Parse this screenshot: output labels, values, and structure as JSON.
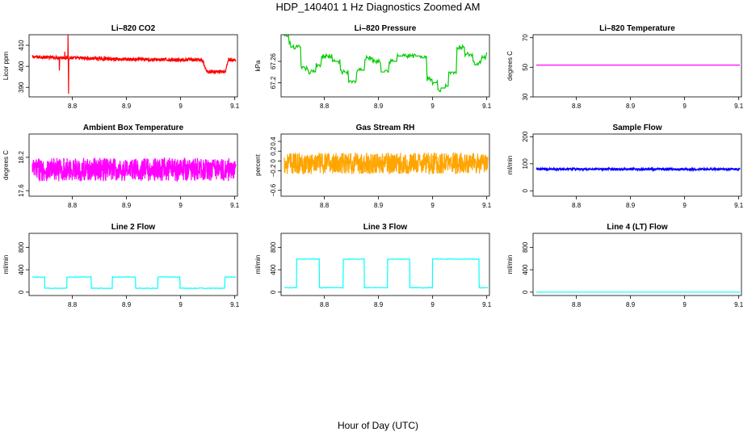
{
  "figure": {
    "title": "HDP_140401  1 Hz Diagnostics Zoomed AM",
    "xlabel": "Hour of Day (UTC)"
  },
  "chart_data": [
    {
      "type": "line",
      "title": "Li–820 CO2",
      "ylabel": "Licor ppm",
      "color": "#ff0000",
      "xlim": [
        8.72,
        9.105
      ],
      "ylim": [
        385.5,
        415
      ],
      "xticks": [
        8.8,
        8.9,
        9.0,
        9.1
      ],
      "yticks": [
        390,
        400,
        410
      ],
      "series": [
        {
          "name": "CO2",
          "style": "noisy",
          "amp": 0.8,
          "x": [
            8.726,
            8.9,
            9.04,
            9.048,
            9.051,
            9.083,
            9.088,
            9.091,
            9.102
          ],
          "y": [
            404.5,
            403.3,
            403.0,
            397.5,
            397.5,
            397.5,
            403.3,
            403.0,
            403.0
          ],
          "spikes": [
            {
              "x": 8.776,
              "y": 398
            },
            {
              "x": 8.792,
              "y": 414.8
            },
            {
              "x": 8.793,
              "y": 387
            },
            {
              "x": 8.786,
              "y": 407
            }
          ]
        }
      ]
    },
    {
      "type": "line",
      "title": "Li–820 Pressure",
      "ylabel": "kPa",
      "color": "#00cc00",
      "xlim": [
        8.72,
        9.105
      ],
      "ylim": [
        67.16,
        67.335
      ],
      "xticks": [
        8.8,
        8.9,
        9.0,
        9.1
      ],
      "yticks": [
        67.2,
        67.26
      ],
      "series": [
        {
          "name": "Pressure",
          "style": "step",
          "amp": 0.005,
          "x": [
            8.726,
            8.735,
            8.738,
            8.755,
            8.757,
            8.77,
            8.785,
            8.795,
            8.805,
            8.815,
            8.83,
            8.845,
            8.86,
            8.875,
            8.89,
            8.905,
            8.92,
            8.935,
            8.955,
            8.975,
            8.99,
            9.0,
            9.01,
            9.02,
            9.03,
            9.045,
            9.06,
            9.075,
            9.09,
            9.1
          ],
          "y": [
            67.33,
            67.315,
            67.3,
            67.3,
            67.24,
            67.23,
            67.25,
            67.275,
            67.275,
            67.26,
            67.23,
            67.205,
            67.235,
            67.27,
            67.26,
            67.235,
            67.26,
            67.275,
            67.275,
            67.27,
            67.21,
            67.2,
            67.18,
            67.19,
            67.23,
            67.3,
            67.28,
            67.255,
            67.27,
            67.285
          ]
        }
      ]
    },
    {
      "type": "line",
      "title": "Li–820 Temperature",
      "ylabel": "degrees C",
      "color": "#ff00ff",
      "xlim": [
        8.72,
        9.105
      ],
      "ylim": [
        30,
        72
      ],
      "xticks": [
        8.8,
        8.9,
        9.0,
        9.1
      ],
      "yticks": [
        30,
        50,
        70
      ],
      "series": [
        {
          "name": "Temperature",
          "style": "line",
          "amp": 0,
          "x": [
            8.726,
            9.102
          ],
          "y": [
            51.5,
            51.5
          ]
        }
      ]
    },
    {
      "type": "line",
      "title": "Ambient Box Temperature",
      "ylabel": "degrees C",
      "color": "#ff00ff",
      "xlim": [
        8.72,
        9.105
      ],
      "ylim": [
        17.5,
        18.62
      ],
      "xticks": [
        8.8,
        8.9,
        9.0,
        9.1
      ],
      "yticks": [
        17.6,
        18.2
      ],
      "series": [
        {
          "name": "Ambient",
          "style": "noisy",
          "amp": 0.21,
          "x": [
            8.726,
            9.102
          ],
          "y": [
            17.98,
            17.98
          ]
        }
      ]
    },
    {
      "type": "line",
      "title": "Gas Stream RH",
      "ylabel": "percent",
      "color": "#ffa500",
      "xlim": [
        8.72,
        9.105
      ],
      "ylim": [
        -0.72,
        0.55
      ],
      "xticks": [
        8.8,
        8.9,
        9.0,
        9.1
      ],
      "yticks": [
        -0.6,
        -0.2,
        0.0,
        0.2,
        0.4
      ],
      "series": [
        {
          "name": "RH",
          "style": "noisy",
          "amp": 0.22,
          "x": [
            8.726,
            9.102
          ],
          "y": [
            -0.05,
            -0.05
          ]
        }
      ]
    },
    {
      "type": "line",
      "title": "Sample Flow",
      "ylabel": "ml/min",
      "color": "#0000ff",
      "xlim": [
        8.72,
        9.105
      ],
      "ylim": [
        -20,
        210
      ],
      "xticks": [
        8.8,
        8.9,
        9.0,
        9.1
      ],
      "yticks": [
        0,
        100,
        200
      ],
      "series": [
        {
          "name": "Sample",
          "style": "noisy",
          "amp": 4,
          "x": [
            8.726,
            9.102
          ],
          "y": [
            80,
            80
          ]
        }
      ]
    },
    {
      "type": "line",
      "title": "Line 2 Flow",
      "ylabel": "ml/min",
      "color": "#00ffff",
      "xlim": [
        8.72,
        9.105
      ],
      "ylim": [
        -60,
        1050
      ],
      "xticks": [
        8.8,
        8.9,
        9.0,
        9.1
      ],
      "yticks": [
        0,
        400,
        800
      ],
      "series": [
        {
          "name": "Line 2",
          "style": "step",
          "amp": 4,
          "x": [
            8.726,
            8.748,
            8.749,
            8.789,
            8.79,
            8.834,
            8.835,
            8.873,
            8.874,
            8.916,
            8.917,
            8.957,
            8.958,
            8.998,
            8.999,
            9.081,
            9.082,
            9.102
          ],
          "y": [
            270,
            270,
            70,
            70,
            270,
            270,
            70,
            70,
            270,
            270,
            70,
            70,
            270,
            270,
            70,
            70,
            270,
            270
          ]
        }
      ]
    },
    {
      "type": "line",
      "title": "Line 3 Flow",
      "ylabel": "ml/min",
      "color": "#00ffff",
      "xlim": [
        8.72,
        9.105
      ],
      "ylim": [
        -60,
        1050
      ],
      "xticks": [
        8.8,
        8.9,
        9.0,
        9.1
      ],
      "yticks": [
        0,
        400,
        800
      ],
      "series": [
        {
          "name": "Line 3",
          "style": "step",
          "amp": 4,
          "x": [
            8.726,
            8.748,
            8.749,
            8.79,
            8.791,
            8.834,
            8.835,
            8.873,
            8.874,
            8.916,
            8.917,
            8.957,
            8.958,
            8.999,
            9.0,
            9.085,
            9.086,
            9.102
          ],
          "y": [
            80,
            80,
            590,
            590,
            80,
            80,
            590,
            590,
            80,
            80,
            590,
            590,
            80,
            80,
            590,
            590,
            80,
            80
          ]
        }
      ]
    },
    {
      "type": "line",
      "title": "Line 4 (LT) Flow",
      "ylabel": "ml/min",
      "color": "#00ffff",
      "xlim": [
        8.72,
        9.105
      ],
      "ylim": [
        -60,
        1050
      ],
      "xticks": [
        8.8,
        8.9,
        9.0,
        9.1
      ],
      "yticks": [
        0,
        400,
        800
      ],
      "series": [
        {
          "name": "Line 4",
          "style": "line",
          "amp": 0,
          "x": [
            8.726,
            9.102
          ],
          "y": [
            0,
            0
          ]
        }
      ]
    }
  ]
}
